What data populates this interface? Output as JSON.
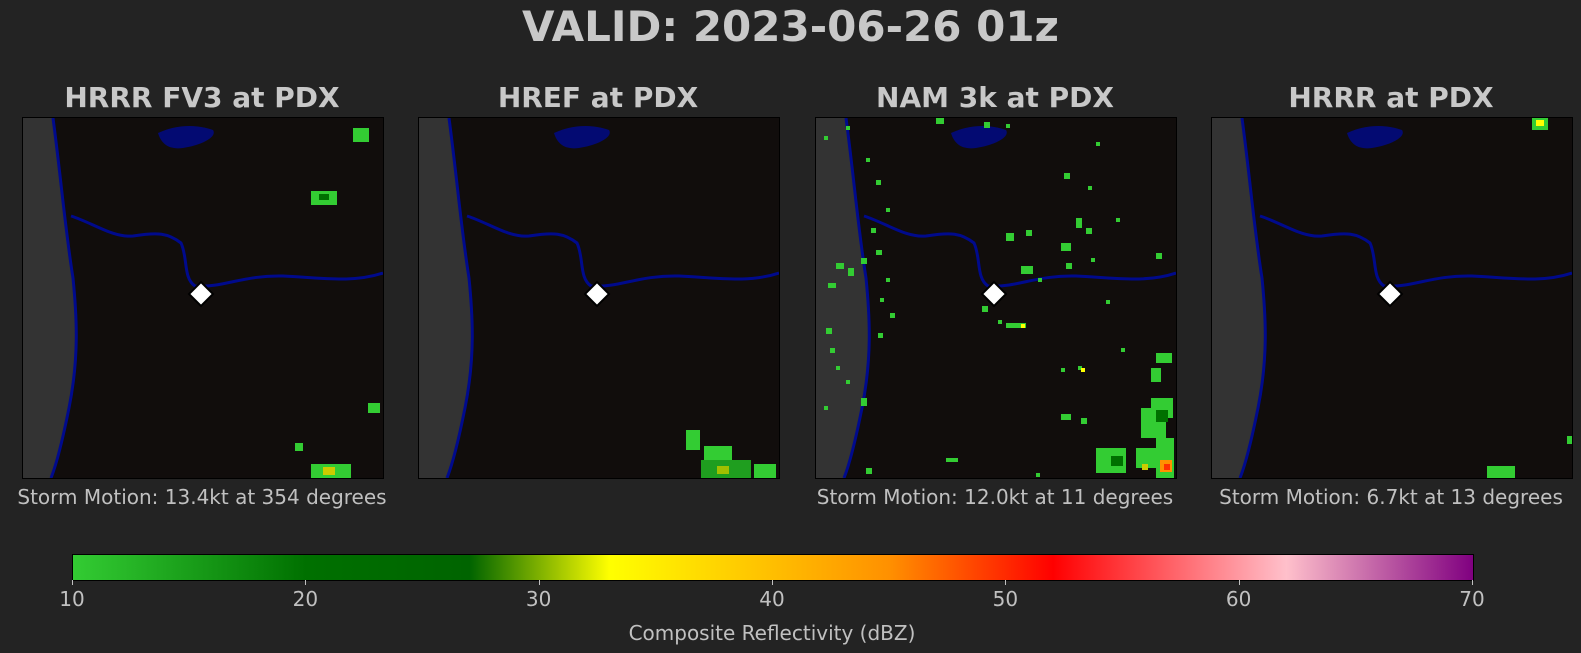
{
  "title": "VALID: 2023-06-26 01z",
  "panels": [
    {
      "title": "HRRR FV3 at PDX",
      "motion": "Storm Motion: 13.4kt at 354 degrees"
    },
    {
      "title": "HREF at PDX",
      "motion": ""
    },
    {
      "title": "NAM 3k at PDX",
      "motion": "Storm Motion: 12.0kt at 11 degrees"
    },
    {
      "title": "HRRR at PDX",
      "motion": "Storm Motion: 6.7kt at 13 degrees"
    }
  ],
  "colors": {
    "background": "#232323",
    "map_background": "#110d0c",
    "land_outside": "#333333",
    "river": "#000a8c",
    "station_marker": "#ffffff"
  },
  "chart_data": {
    "type": "heatmap",
    "colorbar": {
      "label": "Composite Reflectivity (dBZ)",
      "range": [
        10,
        70
      ],
      "ticks": [
        10,
        20,
        30,
        40,
        50,
        60,
        70
      ],
      "stops": [
        {
          "dbz": 10,
          "color": "#33cc33"
        },
        {
          "dbz": 20,
          "color": "#007000"
        },
        {
          "dbz": 27,
          "color": "#006400"
        },
        {
          "dbz": 33,
          "color": "#ffff00"
        },
        {
          "dbz": 45,
          "color": "#ff9000"
        },
        {
          "dbz": 52,
          "color": "#ff0000"
        },
        {
          "dbz": 62,
          "color": "#ffc0cb"
        },
        {
          "dbz": 70,
          "color": "#800080"
        }
      ]
    },
    "station": "PDX"
  }
}
